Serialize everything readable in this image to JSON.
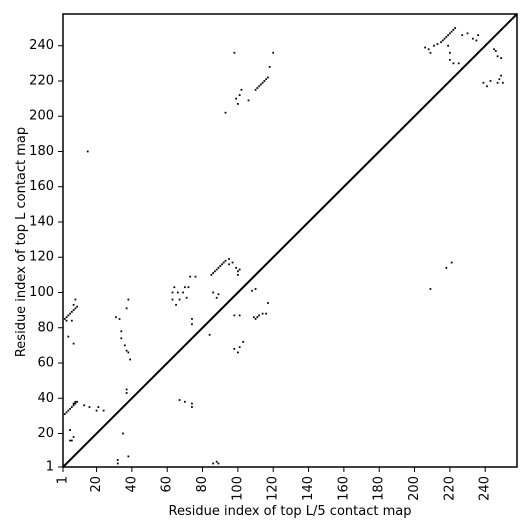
{
  "chart_data": {
    "type": "scatter",
    "title": "",
    "xlabel": "Residue index of top L/5 contact map",
    "ylabel": "Residue index of top L contact map",
    "xlim": [
      1,
      258
    ],
    "ylim": [
      1,
      258
    ],
    "xticks": [
      1,
      20,
      40,
      60,
      80,
      100,
      120,
      140,
      160,
      180,
      200,
      220,
      240
    ],
    "yticks": [
      1,
      20,
      40,
      60,
      80,
      100,
      120,
      140,
      160,
      180,
      200,
      220,
      240
    ],
    "grid": false,
    "marker_color": "#000000",
    "diagonal": true,
    "series": [
      {
        "region": "upper-left (top L contacts)",
        "points": [
          [
            2,
            31
          ],
          [
            3,
            32
          ],
          [
            4,
            33
          ],
          [
            5,
            34
          ],
          [
            6,
            35
          ],
          [
            7,
            36
          ],
          [
            8,
            37
          ],
          [
            9,
            38
          ],
          [
            7,
            37
          ],
          [
            8,
            38
          ],
          [
            2,
            85
          ],
          [
            3,
            86
          ],
          [
            4,
            87
          ],
          [
            5,
            88
          ],
          [
            6,
            89
          ],
          [
            7,
            90
          ],
          [
            8,
            91
          ],
          [
            9,
            92
          ],
          [
            3,
            84
          ],
          [
            6,
            84
          ],
          [
            7,
            93
          ],
          [
            8,
            96
          ],
          [
            5,
            16
          ],
          [
            6,
            16
          ],
          [
            7,
            18
          ],
          [
            5,
            22
          ],
          [
            7,
            71
          ],
          [
            4,
            75
          ],
          [
            15,
            180
          ],
          [
            13,
            36
          ],
          [
            16,
            35
          ],
          [
            21,
            35
          ],
          [
            24,
            33
          ],
          [
            20,
            33
          ],
          [
            32,
            3
          ],
          [
            32,
            5
          ],
          [
            38,
            7
          ],
          [
            35,
            20
          ],
          [
            37,
            43
          ],
          [
            37,
            45
          ],
          [
            31,
            86
          ],
          [
            33,
            85
          ],
          [
            34,
            78
          ],
          [
            34,
            74
          ],
          [
            36,
            70
          ],
          [
            37,
            67
          ],
          [
            38,
            66
          ],
          [
            37,
            91
          ],
          [
            38,
            96
          ],
          [
            39,
            62
          ],
          [
            63,
            96
          ],
          [
            63,
            100
          ],
          [
            64,
            103
          ],
          [
            65,
            93
          ],
          [
            66,
            100
          ],
          [
            67,
            96
          ],
          [
            69,
            100
          ],
          [
            70,
            103
          ],
          [
            71,
            97
          ],
          [
            72,
            103
          ],
          [
            73,
            109
          ],
          [
            74,
            85
          ],
          [
            74,
            82
          ],
          [
            76,
            109
          ],
          [
            67,
            39
          ],
          [
            70,
            38
          ],
          [
            74,
            37
          ],
          [
            74,
            35
          ],
          [
            85,
            110
          ],
          [
            86,
            111
          ],
          [
            87,
            112
          ],
          [
            88,
            113
          ],
          [
            89,
            114
          ],
          [
            90,
            115
          ],
          [
            91,
            116
          ],
          [
            92,
            117
          ],
          [
            93,
            118
          ],
          [
            86,
            100
          ],
          [
            88,
            97
          ],
          [
            89,
            99
          ],
          [
            84,
            76
          ],
          [
            86,
            3
          ],
          [
            88,
            4
          ],
          [
            89,
            3
          ],
          [
            95,
            116
          ],
          [
            95,
            119
          ],
          [
            97,
            117
          ],
          [
            99,
            114
          ],
          [
            100,
            110
          ],
          [
            100,
            112
          ],
          [
            101,
            113
          ],
          [
            98,
            87
          ],
          [
            101,
            87
          ],
          [
            98,
            68
          ],
          [
            100,
            66
          ],
          [
            101,
            69
          ],
          [
            103,
            72
          ],
          [
            108,
            101
          ],
          [
            110,
            102
          ],
          [
            109,
            86
          ],
          [
            110,
            85
          ],
          [
            111,
            86
          ],
          [
            112,
            87
          ],
          [
            114,
            88
          ],
          [
            116,
            88
          ],
          [
            117,
            94
          ],
          [
            93,
            202
          ],
          [
            98,
            236
          ],
          [
            99,
            210
          ],
          [
            101,
            212
          ],
          [
            102,
            215
          ],
          [
            100,
            207
          ],
          [
            106,
            209
          ],
          [
            110,
            215
          ],
          [
            111,
            216
          ],
          [
            112,
            217
          ],
          [
            113,
            218
          ],
          [
            114,
            219
          ],
          [
            115,
            220
          ],
          [
            116,
            221
          ],
          [
            117,
            222
          ],
          [
            118,
            228
          ],
          [
            120,
            236
          ]
        ]
      },
      {
        "region": "lower-right (top L/5 contacts)",
        "points": [
          [
            209,
            102
          ],
          [
            218,
            114
          ],
          [
            221,
            117
          ],
          [
            206,
            239
          ],
          [
            208,
            238
          ],
          [
            209,
            236
          ],
          [
            211,
            240
          ],
          [
            213,
            241
          ],
          [
            215,
            242
          ],
          [
            216,
            243
          ],
          [
            217,
            244
          ],
          [
            218,
            245
          ],
          [
            219,
            246
          ],
          [
            220,
            247
          ],
          [
            221,
            248
          ],
          [
            222,
            249
          ],
          [
            223,
            250
          ],
          [
            219,
            240
          ],
          [
            220,
            236
          ],
          [
            220,
            232
          ],
          [
            222,
            230
          ],
          [
            225,
            230
          ],
          [
            227,
            246
          ],
          [
            230,
            247
          ],
          [
            233,
            244
          ],
          [
            235,
            243
          ],
          [
            236,
            246
          ],
          [
            239,
            219
          ],
          [
            241,
            217
          ],
          [
            243,
            220
          ],
          [
            245,
            238
          ],
          [
            246,
            237
          ],
          [
            247,
            234
          ],
          [
            247,
            219
          ],
          [
            248,
            221
          ],
          [
            249,
            223
          ],
          [
            250,
            219
          ],
          [
            249,
            233
          ]
        ]
      }
    ]
  }
}
